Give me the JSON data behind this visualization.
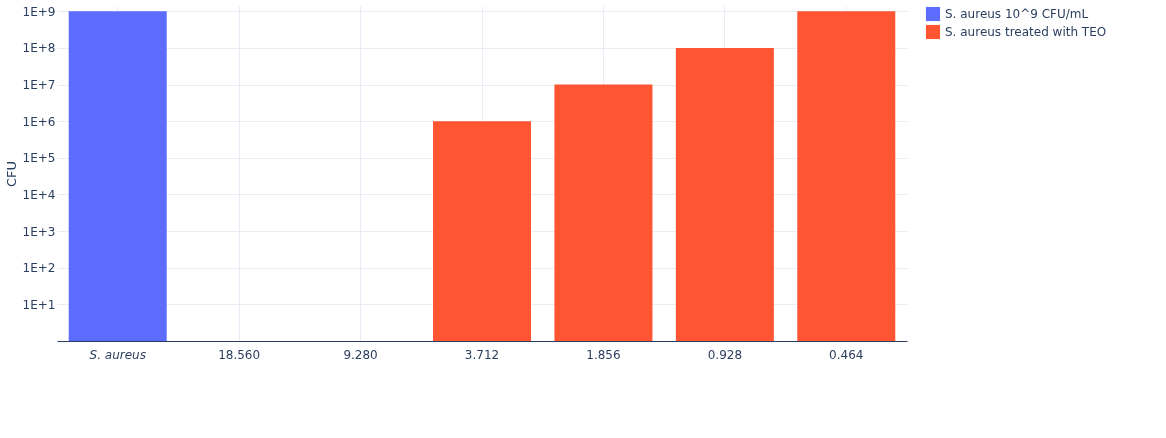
{
  "chart_data": {
    "type": "bar",
    "ylabel": "CFU",
    "categories": [
      "S. aureus",
      "18.560",
      "9.280",
      "3.712",
      "1.856",
      "0.928",
      "0.464"
    ],
    "series": [
      {
        "name": "S. aureus 10^9 CFU/mL",
        "color": "#5b6cff",
        "values": [
          1000000000,
          null,
          null,
          null,
          null,
          null,
          null
        ]
      },
      {
        "name": "S. aureus treated with TEO",
        "color": "#ff5533",
        "values": [
          null,
          null,
          null,
          1000000,
          10000000,
          100000000,
          1000000000
        ]
      }
    ],
    "log": "y",
    "ylim": [
      1,
      1400000000
    ],
    "yticks": [
      {
        "value": 10,
        "label": "1E+1"
      },
      {
        "value": 100,
        "label": "1E+2"
      },
      {
        "value": 1000,
        "label": "1E+3"
      },
      {
        "value": 10000,
        "label": "1E+4"
      },
      {
        "value": 100000,
        "label": "1E+5"
      },
      {
        "value": 1000000,
        "label": "1E+6"
      },
      {
        "value": 10000000,
        "label": "1E+7"
      },
      {
        "value": 100000000,
        "label": "1E+8"
      },
      {
        "value": 1000000000,
        "label": "1E+9"
      }
    ],
    "grid": true,
    "legend": "top right"
  }
}
